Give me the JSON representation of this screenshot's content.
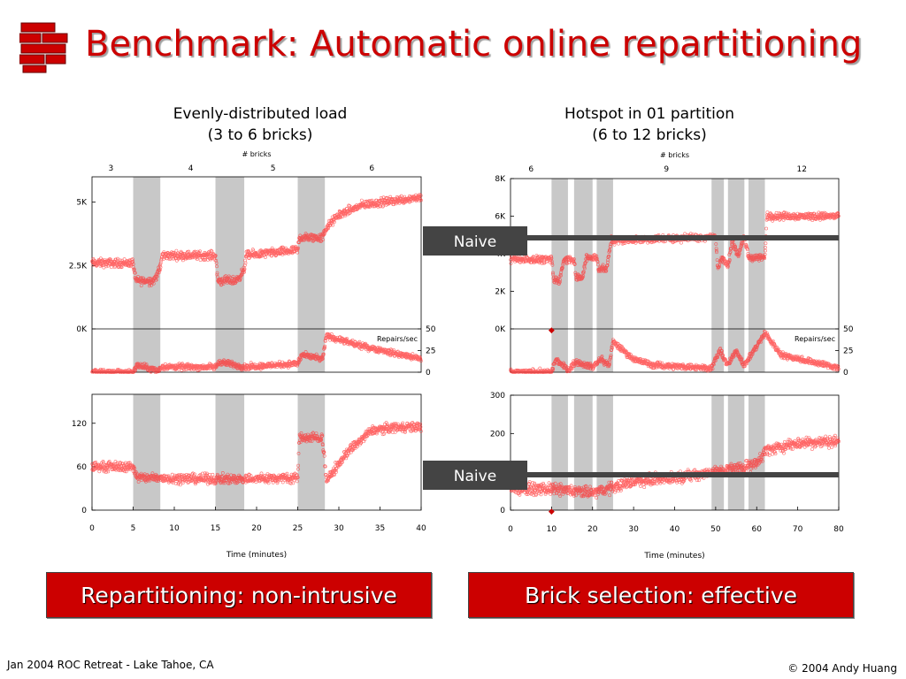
{
  "slide": {
    "title": "Benchmark: Automatic online repartitioning",
    "footer_left": "Jan 2004 ROC Retreat - Lake Tahoe, CA",
    "footer_right": "© 2004 Andy Huang",
    "caption_left": "Repartitioning: non-intrusive",
    "caption_right": "Brick selection: effective",
    "colors": {
      "accent": "#cc0000",
      "points": "#ff3333",
      "shade": "#c8c8c8",
      "naive": "#444444"
    }
  },
  "chart_data": [
    {
      "type": "scatter",
      "title": "Evenly-distributed load",
      "subtitle": "(3 to 6 bricks)",
      "top_axis_label": "# bricks",
      "top_ticks": [
        {
          "x": 2.3,
          "label": "3"
        },
        {
          "x": 12,
          "label": "4"
        },
        {
          "x": 22,
          "label": "5"
        },
        {
          "x": 34,
          "label": "6"
        }
      ],
      "xlabel": "Time (minutes)",
      "xlim": [
        0,
        40
      ],
      "xticks": [
        0,
        5,
        10,
        15,
        20,
        25,
        30,
        35,
        40
      ],
      "shaded_intervals": [
        [
          5,
          8.3
        ],
        [
          15,
          18.5
        ],
        [
          25,
          28.3
        ]
      ],
      "panels": [
        {
          "name": "throughput",
          "ylim": [
            0,
            6000
          ],
          "yticks": [
            {
              "v": 0,
              "label": "0K"
            },
            {
              "v": 2500,
              "label": "2.5K"
            },
            {
              "v": 5000,
              "label": "5K"
            }
          ],
          "trend": [
            [
              0,
              2600
            ],
            [
              5,
              2600
            ],
            [
              5.3,
              1900
            ],
            [
              7.5,
              1900
            ],
            [
              8.3,
              2400
            ],
            [
              8.5,
              2900
            ],
            [
              15,
              2900
            ],
            [
              15.3,
              1900
            ],
            [
              17.5,
              1900
            ],
            [
              18.5,
              2300
            ],
            [
              18.7,
              2900
            ],
            [
              25,
              3100
            ],
            [
              25.2,
              3600
            ],
            [
              28,
              3600
            ],
            [
              28.5,
              4000
            ],
            [
              30,
              4500
            ],
            [
              33,
              4900
            ],
            [
              40,
              5200
            ]
          ]
        },
        {
          "name": "repairs",
          "secondary_label": "Repairs/sec",
          "ylim": [
            0,
            50
          ],
          "right_ticks": [
            0,
            25,
            50
          ],
          "trend": [
            [
              0,
              0
            ],
            [
              5,
              0
            ],
            [
              5.5,
              8
            ],
            [
              8,
              2
            ],
            [
              8.5,
              6
            ],
            [
              15,
              6
            ],
            [
              15.5,
              12
            ],
            [
              18.5,
              6
            ],
            [
              25,
              10
            ],
            [
              25.5,
              20
            ],
            [
              28,
              15
            ],
            [
              28.5,
              42
            ],
            [
              32,
              32
            ],
            [
              40,
              15
            ]
          ]
        },
        {
          "name": "latency",
          "ylim": [
            0,
            160
          ],
          "yticks": [
            {
              "v": 0,
              "label": "0"
            },
            {
              "v": 60,
              "label": "60"
            },
            {
              "v": 120,
              "label": "120"
            }
          ],
          "trend": [
            [
              0,
              60
            ],
            [
              5,
              60
            ],
            [
              5.5,
              45
            ],
            [
              15,
              43
            ],
            [
              18,
              43
            ],
            [
              25,
              45
            ],
            [
              25.2,
              100
            ],
            [
              28,
              100
            ],
            [
              28.5,
              40
            ],
            [
              31,
              80
            ],
            [
              34,
              110
            ],
            [
              37,
              115
            ],
            [
              40,
              115
            ]
          ]
        }
      ],
      "annotation": {
        "label": "Naive",
        "ref_values": [],
        "ref_panels": []
      }
    },
    {
      "type": "scatter",
      "title": "Hotspot in 01 partition",
      "subtitle": "(6 to 12 bricks)",
      "top_axis_label": "# bricks",
      "top_ticks": [
        {
          "x": 5,
          "label": "6"
        },
        {
          "x": 38,
          "label": "9"
        },
        {
          "x": 71,
          "label": "12"
        }
      ],
      "xlabel": "Time (minutes)",
      "xlim": [
        0,
        80
      ],
      "xticks": [
        0,
        10,
        20,
        30,
        40,
        50,
        60,
        70,
        80
      ],
      "shaded_intervals": [
        [
          10,
          14
        ],
        [
          15.5,
          20
        ],
        [
          21,
          25
        ],
        [
          49,
          52
        ],
        [
          53,
          57
        ],
        [
          58,
          62
        ]
      ],
      "panels": [
        {
          "name": "throughput",
          "ylim": [
            0,
            8000
          ],
          "yticks": [
            {
              "v": 0,
              "label": "0K"
            },
            {
              "v": 2000,
              "label": "2K"
            },
            {
              "v": 4000,
              "label": "4K"
            },
            {
              "v": 6000,
              "label": "6K"
            },
            {
              "v": 8000,
              "label": "8K"
            }
          ],
          "trend": [
            [
              0,
              3700
            ],
            [
              10,
              3700
            ],
            [
              10.5,
              2600
            ],
            [
              12,
              2600
            ],
            [
              13,
              3700
            ],
            [
              15.5,
              3700
            ],
            [
              16,
              2700
            ],
            [
              17.5,
              2700
            ],
            [
              18.5,
              3800
            ],
            [
              21,
              3800
            ],
            [
              21.5,
              3200
            ],
            [
              23.5,
              3200
            ],
            [
              24.5,
              4700
            ],
            [
              50,
              4900
            ],
            [
              50.5,
              3200
            ],
            [
              51.5,
              3800
            ],
            [
              53,
              3300
            ],
            [
              54,
              4700
            ],
            [
              55.5,
              3900
            ],
            [
              57,
              4900
            ],
            [
              58,
              3800
            ],
            [
              62,
              3800
            ],
            [
              62.5,
              6000
            ],
            [
              80,
              6000
            ]
          ]
        },
        {
          "name": "repairs",
          "secondary_label": "Repairs/sec",
          "ylim": [
            0,
            50
          ],
          "right_ticks": [
            0,
            25,
            50
          ],
          "trend": [
            [
              0,
              0
            ],
            [
              10,
              0
            ],
            [
              11,
              15
            ],
            [
              14,
              3
            ],
            [
              16,
              12
            ],
            [
              20,
              6
            ],
            [
              22,
              15
            ],
            [
              24,
              8
            ],
            [
              25,
              35
            ],
            [
              30,
              15
            ],
            [
              35,
              8
            ],
            [
              49,
              5
            ],
            [
              51,
              25
            ],
            [
              53,
              8
            ],
            [
              55,
              25
            ],
            [
              57,
              8
            ],
            [
              60,
              30
            ],
            [
              62,
              45
            ],
            [
              66,
              20
            ],
            [
              80,
              5
            ]
          ]
        },
        {
          "name": "latency",
          "ylim": [
            0,
            300
          ],
          "yticks": [
            {
              "v": 0,
              "label": "0"
            },
            {
              "v": 100,
              "label": "100"
            },
            {
              "v": 200,
              "label": "200"
            },
            {
              "v": 300,
              "label": "300"
            }
          ],
          "trend": [
            [
              0,
              55
            ],
            [
              10,
              55
            ],
            [
              20,
              45
            ],
            [
              25,
              60
            ],
            [
              30,
              75
            ],
            [
              40,
              85
            ],
            [
              50,
              100
            ],
            [
              55,
              110
            ],
            [
              60,
              120
            ],
            [
              62,
              155
            ],
            [
              66,
              165
            ],
            [
              70,
              175
            ],
            [
              80,
              180
            ]
          ]
        }
      ],
      "annotation": {
        "label": "Naive",
        "ref_values": [
          4900,
          85
        ],
        "ref_panels": [
          0,
          2
        ]
      }
    }
  ]
}
